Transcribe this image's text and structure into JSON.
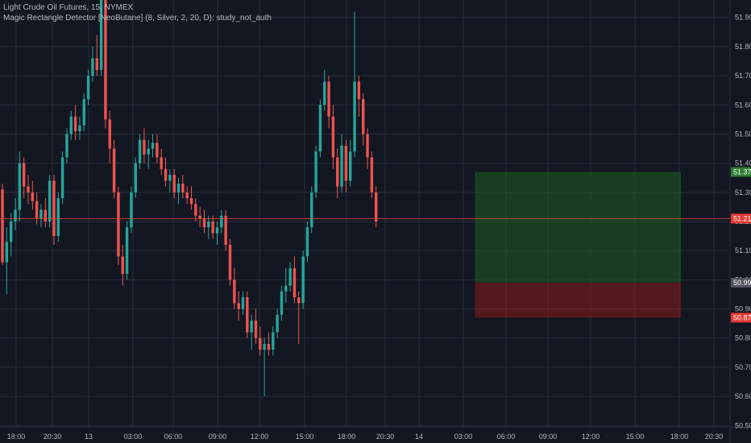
{
  "header": {
    "symbol_line": "Light Crude Oil Futures, 15, NYMEX",
    "study_line": "Magic Rectangle Detector [NeoButane] (8, Silver, 2, 20, D): study_not_auth"
  },
  "colors": {
    "background": "#131722",
    "grid": "#2a2e39",
    "up": "#26a69a",
    "down": "#ef5350",
    "green_zone": "#1b5e20",
    "red_zone": "#8b1a1a",
    "price_line": "#ef5350",
    "badge_green": "#2e7d32",
    "badge_red": "#e53935",
    "badge_gray": "#50535e"
  },
  "chart_data": {
    "type": "candlestick",
    "title": "Light Crude Oil Futures, 15, NYMEX",
    "ylim": [
      50.44,
      51.96
    ],
    "y_ticks": [
      "51.90",
      "51.80",
      "51.70",
      "51.60",
      "51.50",
      "51.40",
      "51.30",
      "51.20",
      "51.10",
      "51.00",
      "50.90",
      "50.80",
      "50.70",
      "50.60",
      "50.50"
    ],
    "x_ticks": [
      "18:00",
      "20:30",
      "13",
      "03:00",
      "06:00",
      "09:00",
      "12:00",
      "15:00",
      "18:00",
      "20:30",
      "14",
      "03:00",
      "06:00",
      "09:00",
      "12:00",
      "15:00",
      "18:00",
      "20:30"
    ],
    "price_badges": [
      {
        "label": "51.37",
        "price": 51.37,
        "kind": "green"
      },
      {
        "label": "51.21",
        "price": 51.21,
        "kind": "red"
      },
      {
        "label": "50.99",
        "price": 50.99,
        "kind": "gray"
      },
      {
        "label": "50.87",
        "price": 50.87,
        "kind": "red"
      }
    ],
    "current_price": 51.21,
    "zones": [
      {
        "type": "profit",
        "top": 51.37,
        "bottom": 50.99,
        "start_candle": 110,
        "end_candle": 158
      },
      {
        "type": "stop",
        "top": 50.99,
        "bottom": 50.87,
        "start_candle": 110,
        "end_candle": 158
      }
    ],
    "candles": [
      [
        51.31,
        51.33,
        51.05,
        51.06
      ],
      [
        51.06,
        51.18,
        50.95,
        51.13
      ],
      [
        51.13,
        51.23,
        51.08,
        51.2
      ],
      [
        51.2,
        51.28,
        51.17,
        51.24
      ],
      [
        51.24,
        51.44,
        51.2,
        51.4
      ],
      [
        51.4,
        51.42,
        51.28,
        51.32
      ],
      [
        51.32,
        51.36,
        51.26,
        51.3
      ],
      [
        51.3,
        51.34,
        51.24,
        51.27
      ],
      [
        51.27,
        51.3,
        51.19,
        51.21
      ],
      [
        51.21,
        51.26,
        51.18,
        51.24
      ],
      [
        51.24,
        51.28,
        51.18,
        51.2
      ],
      [
        51.2,
        51.36,
        51.18,
        51.34
      ],
      [
        51.34,
        51.36,
        51.12,
        51.15
      ],
      [
        51.15,
        51.3,
        51.13,
        51.28
      ],
      [
        51.28,
        51.44,
        51.26,
        51.42
      ],
      [
        51.42,
        51.52,
        51.4,
        51.5
      ],
      [
        51.5,
        51.58,
        51.48,
        51.56
      ],
      [
        51.56,
        51.6,
        51.48,
        51.51
      ],
      [
        51.51,
        51.56,
        51.48,
        51.53
      ],
      [
        51.53,
        51.64,
        51.51,
        51.62
      ],
      [
        51.62,
        51.72,
        51.6,
        51.7
      ],
      [
        51.7,
        51.8,
        51.68,
        51.76
      ],
      [
        51.76,
        51.84,
        51.7,
        51.72
      ],
      [
        51.72,
        51.99,
        51.7,
        51.97
      ],
      [
        51.97,
        51.99,
        51.52,
        51.55
      ],
      [
        51.55,
        51.58,
        51.4,
        51.45
      ],
      [
        51.45,
        51.48,
        51.28,
        51.3
      ],
      [
        51.3,
        51.32,
        51.05,
        51.08
      ],
      [
        51.08,
        51.12,
        50.98,
        51.02
      ],
      [
        51.02,
        51.2,
        51.0,
        51.18
      ],
      [
        51.18,
        51.32,
        51.16,
        51.3
      ],
      [
        51.3,
        51.42,
        51.28,
        51.4
      ],
      [
        51.4,
        51.5,
        51.38,
        51.48
      ],
      [
        51.48,
        51.52,
        51.4,
        51.43
      ],
      [
        51.43,
        51.48,
        51.38,
        51.45
      ],
      [
        51.45,
        51.5,
        51.42,
        51.47
      ],
      [
        51.47,
        51.5,
        51.4,
        51.42
      ],
      [
        51.42,
        51.45,
        51.36,
        51.38
      ],
      [
        51.38,
        51.42,
        51.32,
        51.34
      ],
      [
        51.34,
        51.38,
        51.3,
        51.36
      ],
      [
        51.36,
        51.38,
        51.28,
        51.3
      ],
      [
        51.3,
        51.35,
        51.26,
        51.33
      ],
      [
        51.33,
        51.36,
        51.28,
        51.3
      ],
      [
        51.3,
        51.32,
        51.26,
        51.28
      ],
      [
        51.28,
        51.32,
        51.24,
        51.26
      ],
      [
        51.26,
        51.28,
        51.2,
        51.22
      ],
      [
        51.22,
        51.25,
        51.18,
        51.21
      ],
      [
        51.21,
        51.24,
        51.16,
        51.18
      ],
      [
        51.18,
        51.22,
        51.14,
        51.2
      ],
      [
        51.2,
        51.22,
        51.14,
        51.16
      ],
      [
        51.16,
        51.2,
        51.12,
        51.18
      ],
      [
        51.18,
        51.24,
        51.16,
        51.22
      ],
      [
        51.22,
        51.24,
        51.1,
        51.12
      ],
      [
        51.12,
        51.14,
        50.98,
        51.0
      ],
      [
        51.0,
        51.04,
        50.9,
        50.92
      ],
      [
        50.92,
        50.96,
        50.86,
        50.9
      ],
      [
        50.9,
        50.96,
        50.88,
        50.94
      ],
      [
        50.94,
        50.96,
        50.8,
        50.82
      ],
      [
        50.82,
        50.88,
        50.76,
        50.86
      ],
      [
        50.86,
        50.9,
        50.78,
        50.8
      ],
      [
        50.8,
        50.84,
        50.74,
        50.76
      ],
      [
        50.76,
        50.8,
        50.6,
        50.78
      ],
      [
        50.78,
        50.82,
        50.74,
        50.76
      ],
      [
        50.76,
        50.84,
        50.74,
        50.82
      ],
      [
        50.82,
        50.9,
        50.8,
        50.88
      ],
      [
        50.88,
        50.98,
        50.86,
        50.96
      ],
      [
        50.96,
        51.04,
        50.92,
        50.98
      ],
      [
        50.98,
        51.06,
        50.96,
        51.04
      ],
      [
        51.04,
        51.08,
        50.92,
        50.94
      ],
      [
        50.94,
        50.96,
        50.78,
        50.92
      ],
      [
        50.92,
        51.1,
        50.9,
        51.08
      ],
      [
        51.08,
        51.2,
        51.06,
        51.18
      ],
      [
        51.18,
        51.32,
        51.16,
        51.3
      ],
      [
        51.3,
        51.46,
        51.28,
        51.44
      ],
      [
        51.44,
        51.62,
        51.42,
        51.6
      ],
      [
        51.6,
        51.72,
        51.58,
        51.68
      ],
      [
        51.68,
        51.7,
        51.52,
        51.56
      ],
      [
        51.56,
        51.6,
        51.38,
        51.42
      ],
      [
        51.42,
        51.45,
        51.28,
        51.32
      ],
      [
        51.32,
        51.5,
        51.3,
        51.46
      ],
      [
        51.46,
        51.48,
        51.3,
        51.34
      ],
      [
        51.34,
        51.48,
        51.32,
        51.44
      ],
      [
        51.44,
        51.92,
        51.42,
        51.68
      ],
      [
        51.68,
        51.7,
        51.56,
        51.62
      ],
      [
        51.62,
        51.64,
        51.46,
        51.5
      ],
      [
        51.5,
        51.52,
        51.38,
        51.42
      ],
      [
        51.42,
        51.44,
        51.28,
        51.3
      ],
      [
        51.3,
        51.32,
        51.18,
        51.2
      ]
    ]
  }
}
